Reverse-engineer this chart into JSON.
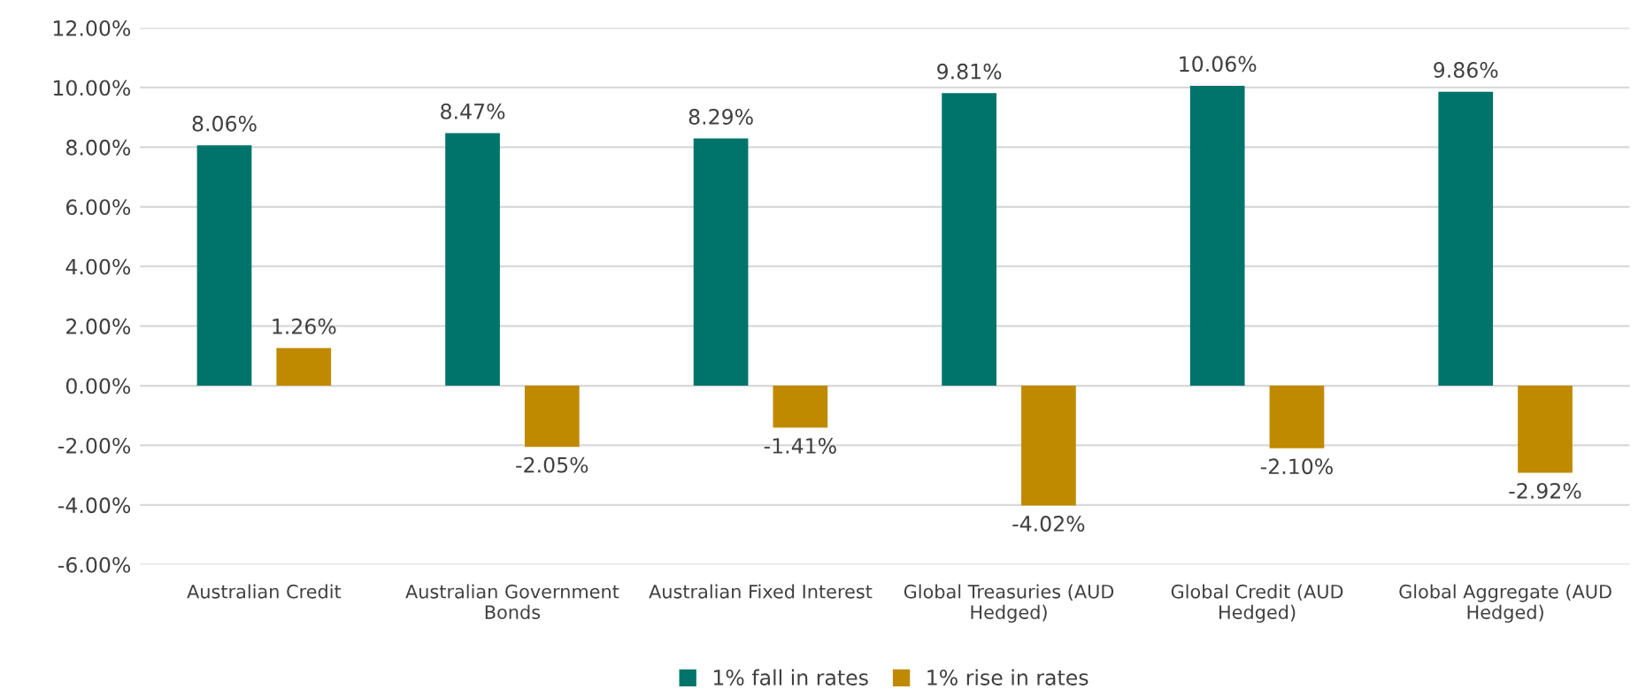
{
  "chart_data": {
    "type": "bar",
    "categories": [
      "Australian Credit",
      "Australian Government\nBonds",
      "Australian Fixed Interest",
      "Global Treasuries (AUD\nHedged)",
      "Global Credit (AUD\nHedged)",
      "Global Aggregate (AUD\nHedged)"
    ],
    "series": [
      {
        "name": "1% fall in rates",
        "color": "#00746b",
        "values": [
          8.06,
          8.47,
          8.29,
          9.81,
          10.06,
          9.86
        ],
        "value_labels": [
          "8.06%",
          "8.47%",
          "8.29%",
          "9.81%",
          "10.06%",
          "9.86%"
        ]
      },
      {
        "name": "1% rise in rates",
        "color": "#c08a00",
        "values": [
          1.26,
          -2.05,
          -1.41,
          -4.02,
          -2.1,
          -2.92
        ],
        "value_labels": [
          "1.26%",
          "-2.05%",
          "-1.41%",
          "-4.02%",
          "-2.10%",
          "-2.92%"
        ]
      }
    ],
    "ylim": [
      -6,
      12
    ],
    "yticks": [
      {
        "value": -6,
        "label": "-6.00%"
      },
      {
        "value": -4,
        "label": "-4.00%"
      },
      {
        "value": -2,
        "label": "-2.00%"
      },
      {
        "value": 0,
        "label": "0.00%"
      },
      {
        "value": 2,
        "label": "2.00%"
      },
      {
        "value": 4,
        "label": "4.00%"
      },
      {
        "value": 6,
        "label": "6.00%"
      },
      {
        "value": 8,
        "label": "8.00%"
      },
      {
        "value": 10,
        "label": "10.00%"
      },
      {
        "value": 12,
        "label": "12.00%"
      }
    ],
    "grid": "y",
    "legend": "bottom"
  }
}
